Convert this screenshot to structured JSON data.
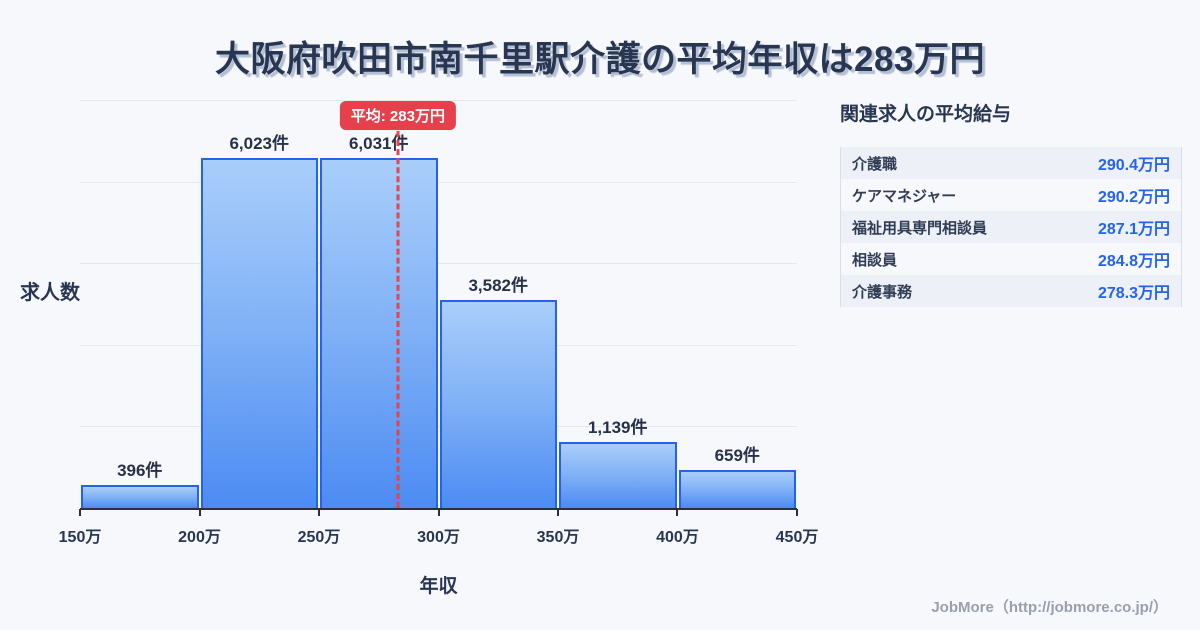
{
  "title": "大阪府吹田市南千里駅介護の平均年収は283万円",
  "chart_data": {
    "type": "bar",
    "title": "大阪府吹田市南千里駅介護の平均年収は283万円",
    "xlabel": "年収",
    "ylabel": "求人数",
    "x_range": [
      150,
      450
    ],
    "ylim": [
      0,
      7000
    ],
    "grid": true,
    "tick_labels": [
      "150万",
      "200万",
      "250万",
      "300万",
      "350万",
      "400万",
      "450万"
    ],
    "bins": [
      "150万-200万",
      "200万-250万",
      "250万-300万",
      "300万-350万",
      "350万-400万",
      "400万-450万"
    ],
    "values": [
      396,
      6023,
      6031,
      3582,
      1139,
      659
    ],
    "bar_labels": [
      "396件",
      "6,023件",
      "6,031件",
      "3,582件",
      "1,139件",
      "659件"
    ],
    "average_value": 283,
    "average_label": "平均: 283万円"
  },
  "side_panel": {
    "title": "関連求人の平均給与",
    "rows": [
      {
        "label": "介護職",
        "value": "290.4万円"
      },
      {
        "label": "ケアマネジャー",
        "value": "290.2万円"
      },
      {
        "label": "福祉用具専門相談員",
        "value": "287.1万円"
      },
      {
        "label": "相談員",
        "value": "284.8万円"
      },
      {
        "label": "介護事務",
        "value": "278.3万円"
      }
    ]
  },
  "footer": {
    "credit": "JobMore（http://jobmore.co.jp/）"
  },
  "colors": {
    "background": "#f7f8fb",
    "title_navy": "#293651",
    "bar_fill_top": "#a9cefa",
    "bar_fill_bottom": "#4b8bf3",
    "bar_border": "#2463e9",
    "average_red": "#e5404b",
    "value_blue": "#2563eb",
    "gridline": "#e5e8ef",
    "footer_gray": "#99a0ab"
  }
}
